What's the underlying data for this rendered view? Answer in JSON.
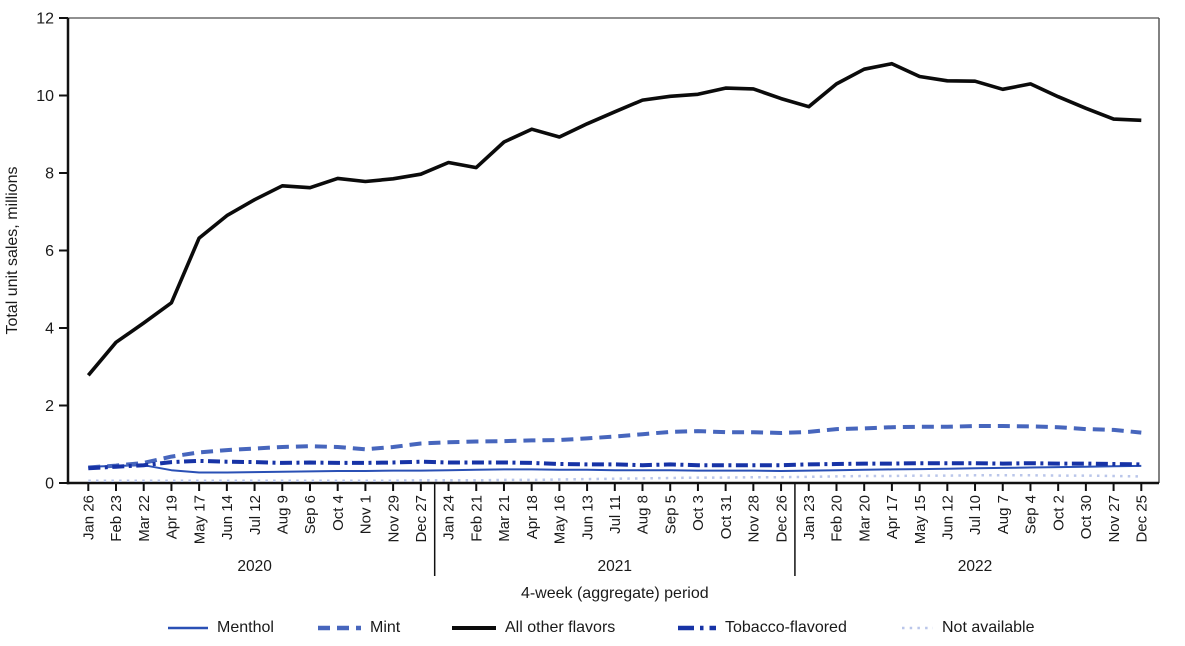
{
  "chart_data": {
    "type": "line",
    "title": "",
    "xlabel": "4-week (aggregate) period",
    "ylabel": "Total unit sales, millions",
    "ylim": [
      0,
      12
    ],
    "yticks": [
      0,
      2,
      4,
      6,
      8,
      10,
      12
    ],
    "grid": "off",
    "legend_position": "bottom",
    "categories": [
      "Jan 26",
      "Feb 23",
      "Mar 22",
      "Apr 19",
      "May 17",
      "Jun 14",
      "Jul 12",
      "Aug 9",
      "Sep 6",
      "Oct 4",
      "Nov 1",
      "Nov 29",
      "Dec 27",
      "Jan 24",
      "Feb 21",
      "Mar 21",
      "Apr 18",
      "May 16",
      "Jun 13",
      "Jul 11",
      "Aug 8",
      "Sep 5",
      "Oct 3",
      "Oct 31",
      "Nov 28",
      "Dec 26",
      "Jan 23",
      "Feb 20",
      "Mar 20",
      "Apr 17",
      "May 15",
      "Jun 12",
      "Jul 10",
      "Aug 7",
      "Sep 4",
      "Oct 2",
      "Oct 30",
      "Nov 27",
      "Dec 25"
    ],
    "year_labels": [
      "2020",
      "2021",
      "2022"
    ],
    "year_group_end_indices": [
      12,
      25,
      38
    ],
    "series": [
      {
        "name": "Menthol",
        "color": "#2a50b5",
        "style": "solid",
        "width": 2,
        "values": [
          0.42,
          0.44,
          0.46,
          0.33,
          0.27,
          0.27,
          0.28,
          0.29,
          0.3,
          0.31,
          0.31,
          0.32,
          0.32,
          0.33,
          0.34,
          0.35,
          0.35,
          0.34,
          0.34,
          0.33,
          0.33,
          0.33,
          0.32,
          0.32,
          0.32,
          0.31,
          0.32,
          0.33,
          0.34,
          0.35,
          0.36,
          0.37,
          0.38,
          0.39,
          0.4,
          0.41,
          0.42,
          0.43,
          0.44
        ]
      },
      {
        "name": "Mint",
        "color": "#4766bd",
        "style": "dashed",
        "width": 4,
        "values": [
          0.4,
          0.45,
          0.52,
          0.68,
          0.79,
          0.85,
          0.89,
          0.93,
          0.95,
          0.93,
          0.87,
          0.93,
          1.02,
          1.05,
          1.07,
          1.08,
          1.1,
          1.11,
          1.15,
          1.2,
          1.26,
          1.32,
          1.34,
          1.31,
          1.31,
          1.29,
          1.32,
          1.39,
          1.41,
          1.44,
          1.45,
          1.45,
          1.47,
          1.47,
          1.46,
          1.44,
          1.39,
          1.37,
          1.3
        ]
      },
      {
        "name": "All other flavors",
        "color": "#0b0b0b",
        "style": "solid",
        "width": 3.6,
        "values": [
          2.78,
          3.63,
          4.13,
          4.65,
          6.32,
          6.9,
          7.31,
          7.67,
          7.62,
          7.86,
          7.78,
          7.85,
          7.97,
          8.27,
          8.14,
          8.8,
          9.13,
          8.93,
          9.27,
          9.58,
          9.88,
          9.98,
          10.03,
          10.19,
          10.17,
          9.92,
          9.71,
          10.3,
          10.68,
          10.82,
          10.49,
          10.38,
          10.37,
          10.16,
          10.3,
          9.97,
          9.67,
          9.39,
          9.36
        ]
      },
      {
        "name": "Tobacco-flavored",
        "color": "#1733a6",
        "style": "dashdot",
        "width": 4,
        "values": [
          0.38,
          0.42,
          0.46,
          0.54,
          0.57,
          0.55,
          0.54,
          0.52,
          0.53,
          0.52,
          0.52,
          0.53,
          0.55,
          0.53,
          0.53,
          0.53,
          0.52,
          0.49,
          0.48,
          0.48,
          0.46,
          0.48,
          0.46,
          0.46,
          0.46,
          0.46,
          0.48,
          0.49,
          0.5,
          0.5,
          0.51,
          0.51,
          0.51,
          0.5,
          0.51,
          0.5,
          0.5,
          0.49,
          0.48
        ]
      },
      {
        "name": "Not available",
        "color": "#bac6ea",
        "style": "dotted",
        "width": 2.5,
        "values": [
          0.06,
          0.06,
          0.06,
          0.06,
          0.06,
          0.06,
          0.06,
          0.06,
          0.06,
          0.06,
          0.06,
          0.06,
          0.07,
          0.07,
          0.07,
          0.08,
          0.08,
          0.09,
          0.1,
          0.11,
          0.12,
          0.13,
          0.14,
          0.14,
          0.15,
          0.15,
          0.16,
          0.17,
          0.18,
          0.18,
          0.19,
          0.19,
          0.2,
          0.2,
          0.2,
          0.19,
          0.19,
          0.18,
          0.17
        ]
      }
    ]
  }
}
